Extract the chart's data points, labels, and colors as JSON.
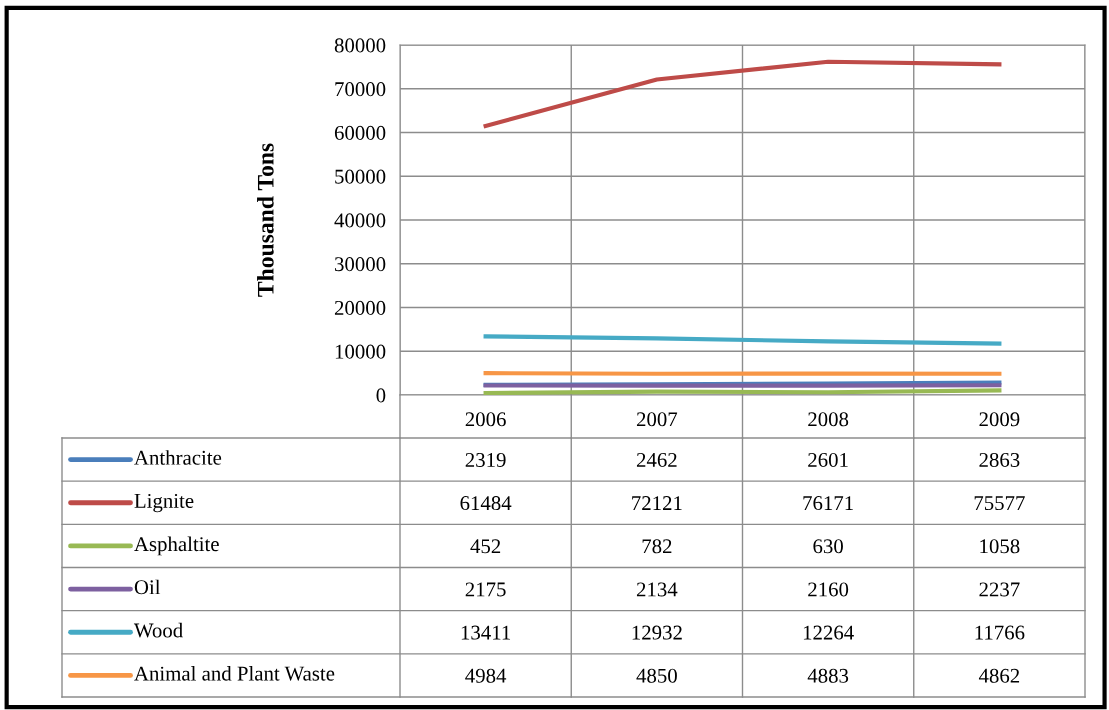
{
  "chart_data": {
    "type": "line",
    "ylabel": "Thousand Tons",
    "categories": [
      "2006",
      "2007",
      "2008",
      "2009"
    ],
    "series": [
      {
        "name": "Anthracite",
        "color": "#4a7ebb",
        "values": [
          2319,
          2462,
          2601,
          2863
        ]
      },
      {
        "name": "Lignite",
        "color": "#be4b48",
        "values": [
          61484,
          72121,
          76171,
          75577
        ]
      },
      {
        "name": "Asphaltite",
        "color": "#98b954",
        "values": [
          452,
          782,
          630,
          1058
        ]
      },
      {
        "name": "Oil",
        "color": "#7d60a0",
        "values": [
          2175,
          2134,
          2160,
          2237
        ]
      },
      {
        "name": "Wood",
        "color": "#46aac5",
        "values": [
          13411,
          12932,
          12264,
          11766
        ]
      },
      {
        "name": "Animal and Plant Waste",
        "color": "#f79646",
        "values": [
          4984,
          4850,
          4883,
          4862
        ]
      }
    ],
    "ylim": [
      0,
      80000
    ],
    "yticks": [
      0,
      10000,
      20000,
      30000,
      40000,
      50000,
      60000,
      70000,
      80000
    ],
    "grid": true,
    "legend": "bottom",
    "data_labels": true,
    "marker": "none",
    "line_style": "solid"
  }
}
